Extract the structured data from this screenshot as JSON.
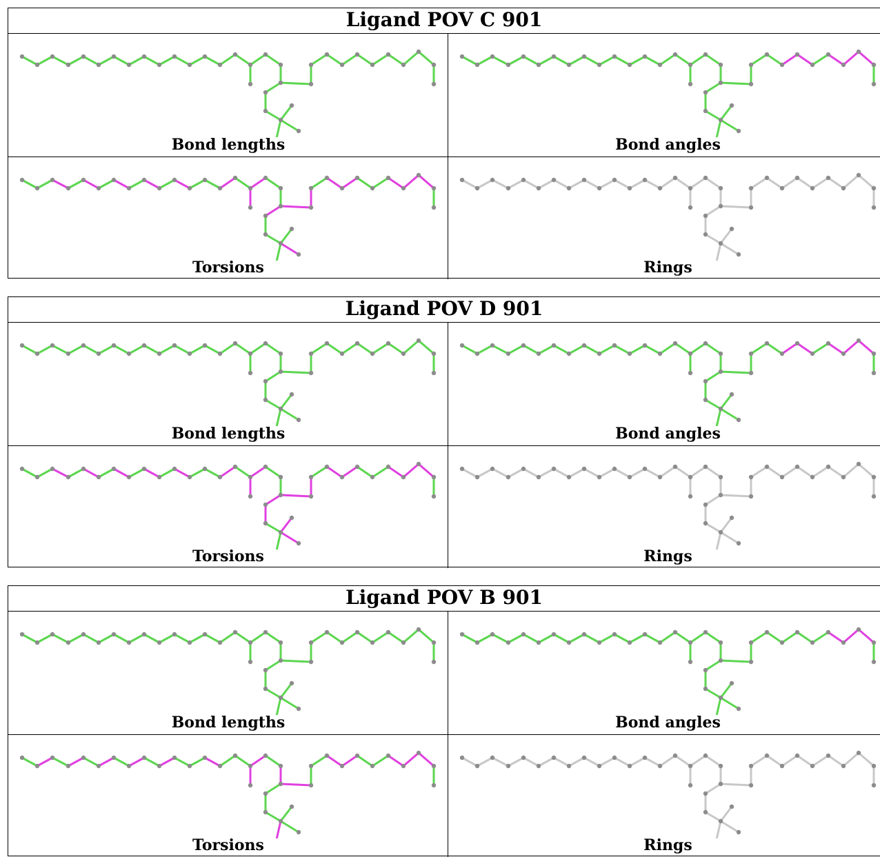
{
  "panels": [
    {
      "title": "Ligand POV C 901",
      "cells": [
        {
          "caption": "Bond lengths",
          "highlight": []
        },
        {
          "caption": "Bond angles",
          "highlight": [
            29,
            30,
            32,
            33,
            34
          ]
        },
        {
          "caption": "Torsions",
          "highlight": [
            2,
            4,
            6,
            8,
            10,
            13,
            15,
            16,
            19,
            22,
            25,
            26,
            28,
            29,
            32,
            33,
            34
          ]
        },
        {
          "caption": "Rings",
          "highlight": []
        }
      ]
    },
    {
      "title": "Ligand POV D 901",
      "cells": [
        {
          "caption": "Bond lengths",
          "highlight": []
        },
        {
          "caption": "Bond angles",
          "highlight": [
            29,
            30,
            32,
            33,
            34
          ]
        },
        {
          "caption": "Torsions",
          "highlight": [
            2,
            4,
            6,
            8,
            10,
            13,
            15,
            16,
            19,
            20,
            22,
            23,
            25,
            26,
            28,
            29,
            32,
            33,
            34
          ]
        },
        {
          "caption": "Rings",
          "highlight": []
        }
      ]
    },
    {
      "title": "Ligand POV B 901",
      "cells": [
        {
          "caption": "Bond lengths",
          "highlight": []
        },
        {
          "caption": "Bond angles",
          "highlight": [
            32,
            33,
            34
          ]
        },
        {
          "caption": "Torsions",
          "highlight": [
            1,
            3,
            5,
            7,
            9,
            12,
            15,
            16,
            18,
            24,
            25,
            28,
            29,
            32,
            33,
            34
          ]
        },
        {
          "caption": "Rings",
          "highlight": []
        }
      ]
    }
  ],
  "colors": {
    "ok": "#5cd64f",
    "outlier": "#e040e0",
    "neutral": "#c8c8c8",
    "atom": "#8c8c8c"
  }
}
